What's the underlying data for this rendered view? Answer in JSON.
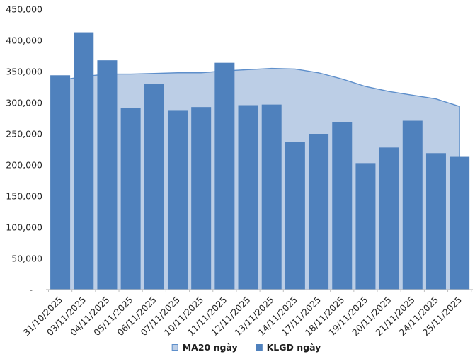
{
  "chart_data": {
    "type": "area+bar",
    "title": "",
    "xlabel": "",
    "ylabel": "",
    "categories": [
      "31/10/2025",
      "03/11/2025",
      "04/11/2025",
      "05/11/2025",
      "06/11/2025",
      "07/11/2025",
      "10/11/2025",
      "11/11/2025",
      "12/11/2025",
      "13/11/2025",
      "14/11/2025",
      "17/11/2025",
      "18/11/2025",
      "19/11/2025",
      "20/11/2025",
      "21/11/2025",
      "24/11/2025",
      "25/11/2025"
    ],
    "series": [
      {
        "name": "MA20 ngày",
        "type": "area",
        "fill_color": "#BCCEE6",
        "line_color": "#5E8FCB",
        "values": [
          336000,
          342000,
          346000,
          346000,
          347000,
          348000,
          348000,
          351000,
          353000,
          355000,
          354000,
          348000,
          338000,
          326000,
          318000,
          312000,
          306000,
          294000
        ]
      },
      {
        "name": "KLGD ngày",
        "type": "bar",
        "color": "#4F81BD",
        "values": [
          344000,
          413000,
          368000,
          291000,
          330000,
          287000,
          293000,
          364000,
          296000,
          297000,
          237000,
          250000,
          269000,
          203000,
          228000,
          271000,
          219000,
          213000
        ]
      }
    ],
    "ylim": [
      0,
      450000
    ],
    "ytick_step": 50000,
    "ytick_labels": [
      "-",
      "50,000",
      "100,000",
      "150,000",
      "200,000",
      "250,000",
      "300,000",
      "350,000",
      "400,000",
      "450,000"
    ],
    "grid": false,
    "legend_position": "bottom-center"
  },
  "style": {
    "axis_line_color": "#BFBFBF",
    "tick_text_color": "#262626",
    "legend_text_color": "#1F1F1F",
    "background": "#FFFFFF"
  }
}
